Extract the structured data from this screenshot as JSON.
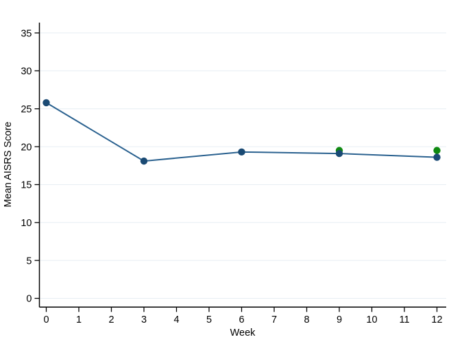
{
  "chart_data": {
    "type": "line",
    "title": "",
    "xlabel": "Week",
    "ylabel": "Mean AISRS Score",
    "xlim": [
      0,
      12
    ],
    "ylim": [
      0,
      35
    ],
    "x_ticks": [
      0,
      1,
      2,
      3,
      4,
      5,
      6,
      7,
      8,
      9,
      10,
      11,
      12
    ],
    "y_ticks": [
      0,
      5,
      10,
      15,
      20,
      25,
      30,
      35
    ],
    "grid": "horizontal",
    "grid_color": "#e6eef3",
    "axis_color": "#000000",
    "legend": "none",
    "series": [
      {
        "name": "mean-aisrs-observed",
        "style": "line+markers",
        "marker_color": "#1a4a74",
        "line_color": "#2a618f",
        "x": [
          0,
          3,
          6,
          9,
          12
        ],
        "y": [
          25.8,
          18.1,
          19.3,
          19.1,
          18.6
        ]
      },
      {
        "name": "mean-aisrs-green-estimate",
        "style": "markers",
        "marker_color": "#0f8a10",
        "line_color": "none",
        "x": [
          9,
          12
        ],
        "y": [
          19.5,
          19.5
        ]
      }
    ]
  }
}
